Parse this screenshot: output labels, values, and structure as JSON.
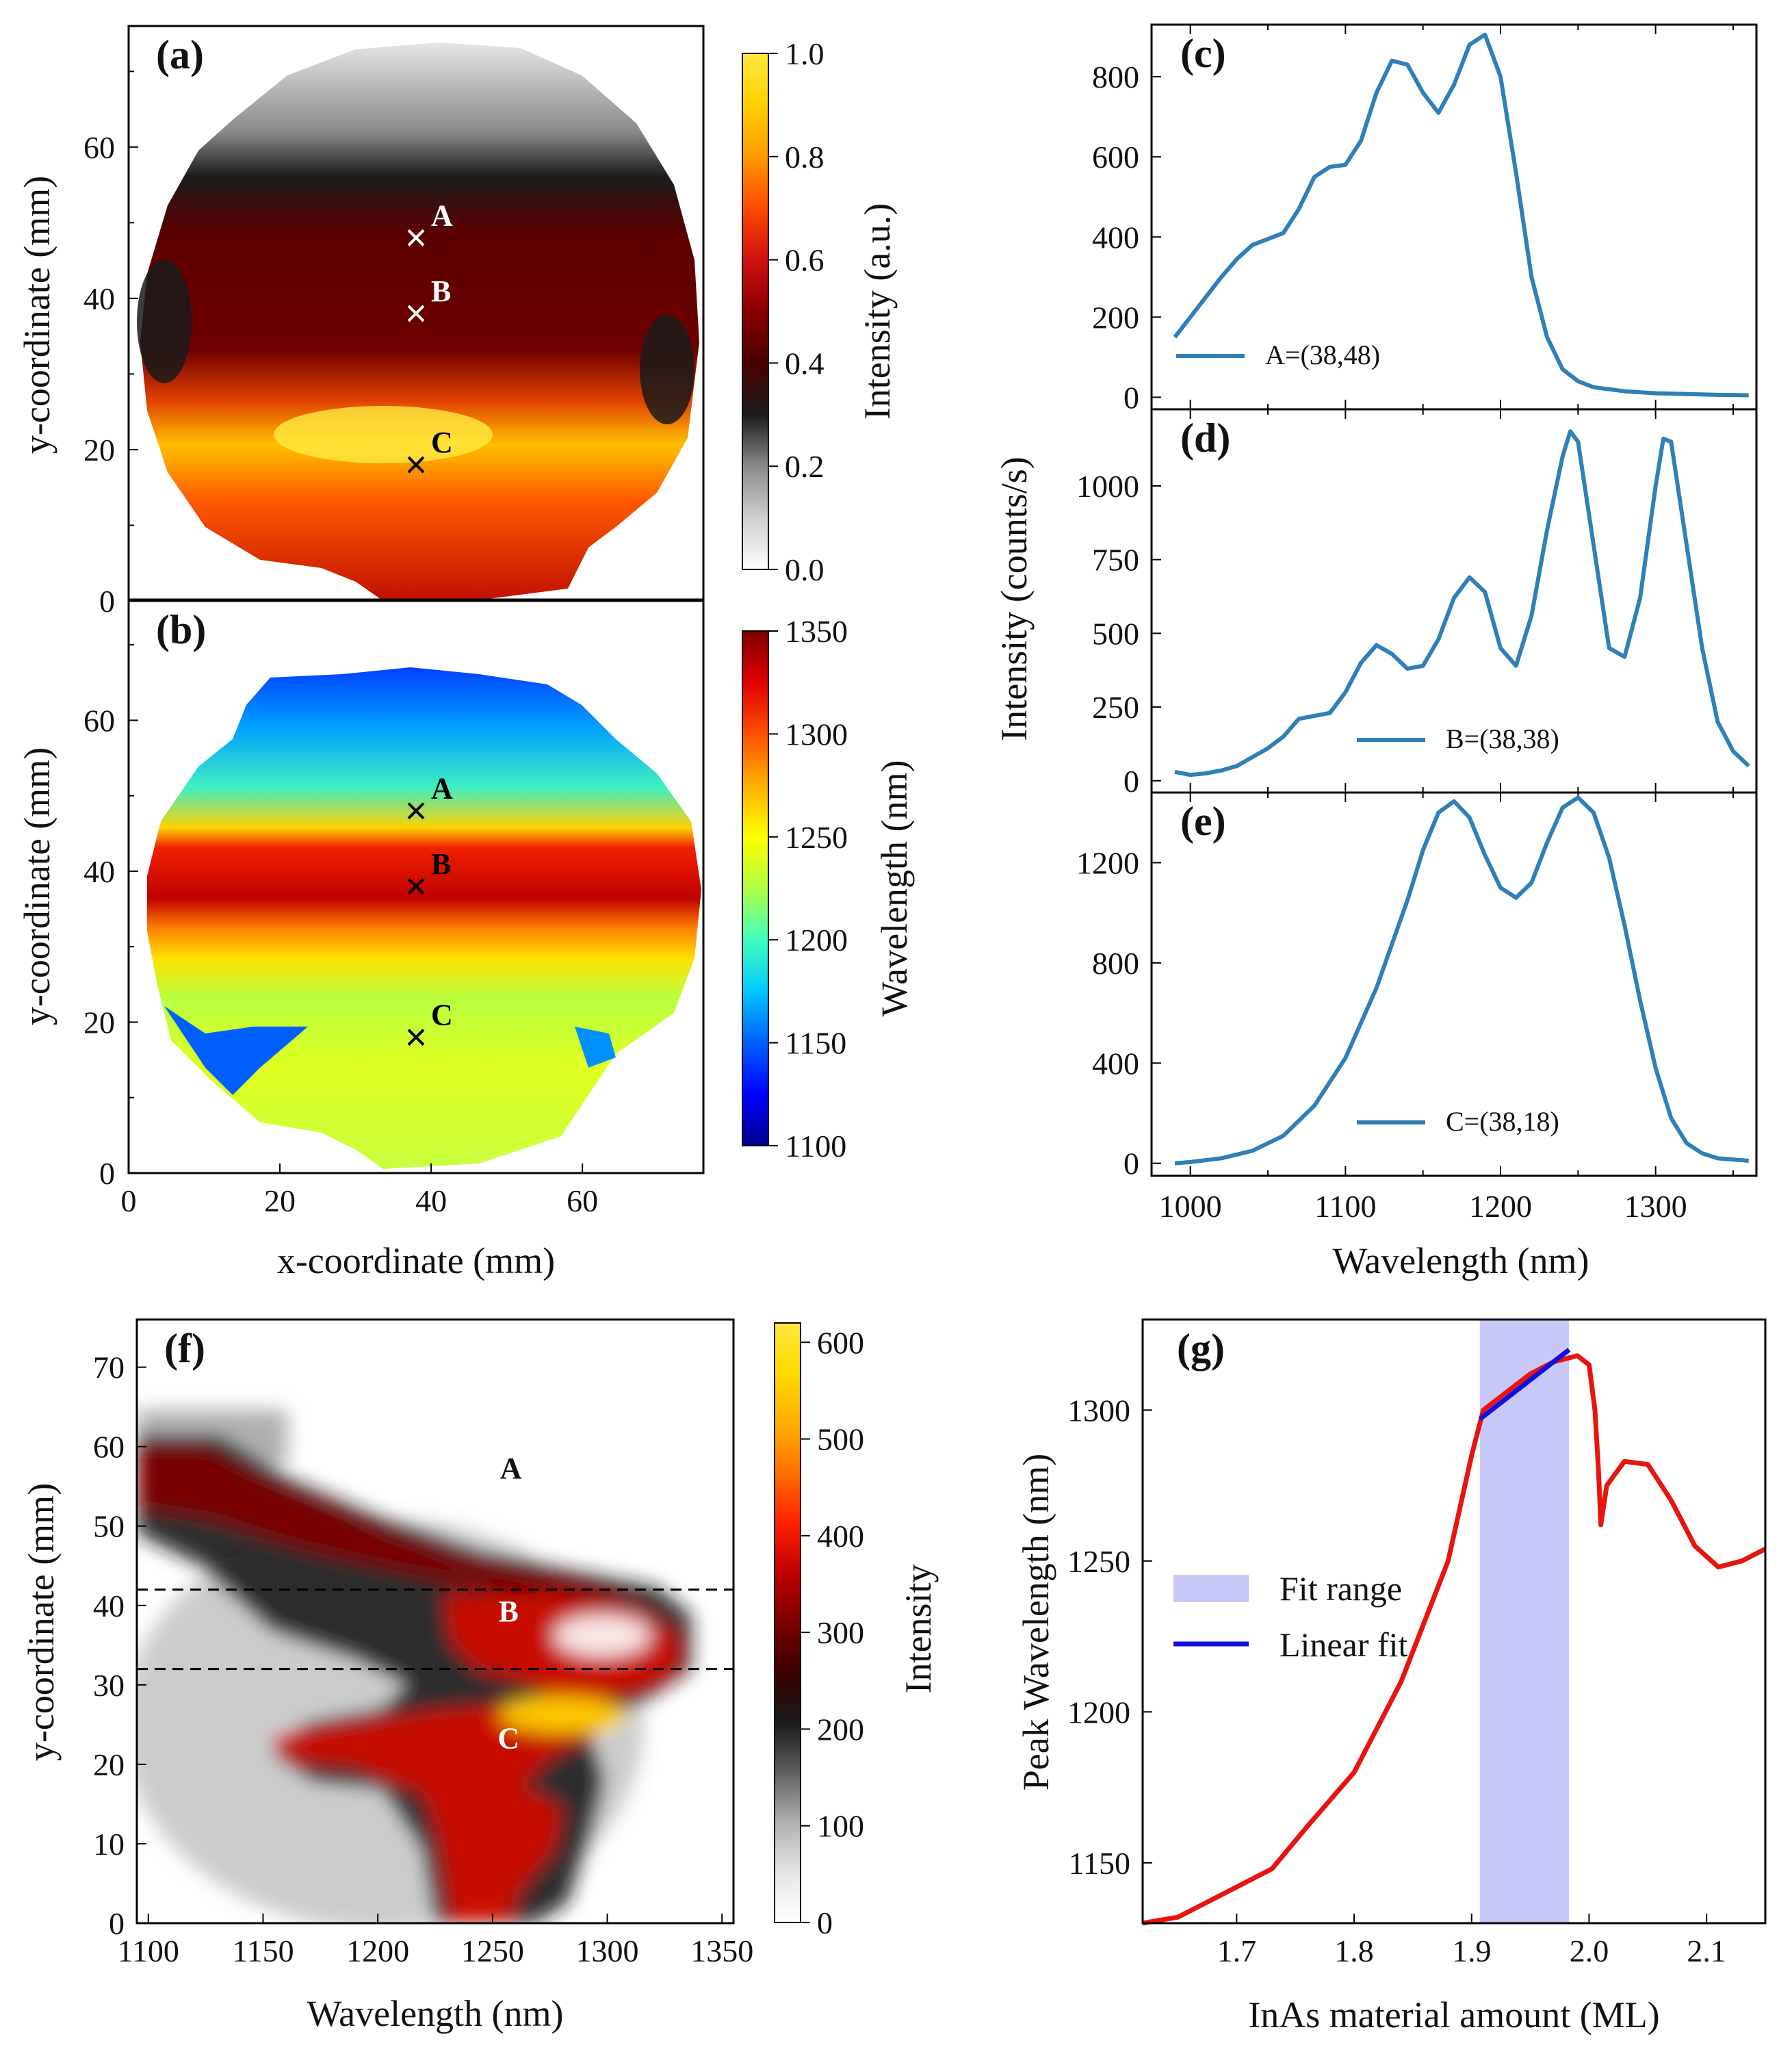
{
  "chart_data": [
    {
      "panel": "(a)",
      "type": "heatmap",
      "xlim": [
        0,
        76
      ],
      "ylim": [
        0,
        76
      ],
      "yticks": [
        "0",
        "20",
        "40",
        "60"
      ],
      "ylabel": "y-coordinate (mm)",
      "points": [
        {
          "label": "A",
          "x": 38,
          "y": 48
        },
        {
          "label": "B",
          "x": 38,
          "y": 38
        },
        {
          "label": "C",
          "x": 38,
          "y": 18
        }
      ],
      "colorbar": {
        "label": "Intensity (a.u.)",
        "range": [
          0,
          1
        ],
        "ticks": [
          "0.0",
          "0.2",
          "0.4",
          "0.6",
          "0.8",
          "1.0"
        ],
        "colors": [
          "#ffffff",
          "#cfcfcf",
          "#8a8a8a",
          "#1a1a1a",
          "#4a0000",
          "#8b0000",
          "#d01010",
          "#ff4a00",
          "#ff9a00",
          "#ffd000",
          "#ffe840"
        ]
      }
    },
    {
      "panel": "(b)",
      "type": "heatmap",
      "xlim": [
        0,
        76
      ],
      "ylim": [
        0,
        76
      ],
      "xticks": [
        "0",
        "20",
        "40",
        "60"
      ],
      "yticks": [
        "0",
        "20",
        "40",
        "60"
      ],
      "xlabel": "x-coordinate (mm)",
      "ylabel": "y-coordinate (mm)",
      "points": [
        {
          "label": "A",
          "x": 38,
          "y": 48
        },
        {
          "label": "B",
          "x": 38,
          "y": 38
        },
        {
          "label": "C",
          "x": 38,
          "y": 18
        }
      ],
      "colorbar": {
        "label": "Wavelength (nm)",
        "range": [
          1100,
          1350
        ],
        "ticks": [
          "1100",
          "1150",
          "1200",
          "1250",
          "1300",
          "1350"
        ],
        "colors": [
          "#00008f",
          "#0000ff",
          "#0060ff",
          "#00c8ff",
          "#40ffbf",
          "#b0ff40",
          "#ffff00",
          "#ffb000",
          "#ff5000",
          "#e00000",
          "#800000"
        ]
      }
    },
    {
      "panel": "(c)",
      "type": "line",
      "xlim": [
        975,
        1365
      ],
      "ylim": [
        -30,
        930
      ],
      "yticks": [
        0,
        200,
        400,
        600,
        800
      ],
      "legend": "A=(38,48)",
      "color": "#2f7fb8",
      "x": [
        990,
        1000,
        1010,
        1020,
        1030,
        1040,
        1050,
        1060,
        1070,
        1080,
        1090,
        1100,
        1110,
        1120,
        1130,
        1140,
        1150,
        1160,
        1170,
        1180,
        1190,
        1200,
        1210,
        1220,
        1230,
        1240,
        1250,
        1260,
        1270,
        1280,
        1300,
        1320,
        1340,
        1360
      ],
      "y": [
        150,
        200,
        250,
        300,
        345,
        380,
        395,
        410,
        470,
        550,
        575,
        580,
        640,
        760,
        840,
        830,
        760,
        710,
        780,
        880,
        905,
        800,
        560,
        300,
        150,
        70,
        40,
        25,
        20,
        15,
        10,
        8,
        6,
        5
      ]
    },
    {
      "panel": "(d)",
      "type": "line",
      "xlim": [
        975,
        1365
      ],
      "ylim": [
        -40,
        1260
      ],
      "yticks": [
        0,
        250,
        500,
        750,
        1000
      ],
      "legend": "B=(38,38)",
      "color": "#2f7fb8",
      "ylabel": "Intensity (counts/s)",
      "x": [
        990,
        1000,
        1010,
        1020,
        1030,
        1040,
        1050,
        1060,
        1070,
        1080,
        1090,
        1100,
        1110,
        1120,
        1130,
        1140,
        1150,
        1160,
        1170,
        1180,
        1190,
        1200,
        1210,
        1220,
        1230,
        1240,
        1245,
        1250,
        1260,
        1270,
        1280,
        1290,
        1300,
        1305,
        1310,
        1320,
        1330,
        1340,
        1350,
        1360
      ],
      "y": [
        30,
        20,
        25,
        35,
        50,
        80,
        110,
        150,
        210,
        220,
        230,
        300,
        400,
        460,
        430,
        380,
        390,
        480,
        620,
        690,
        640,
        450,
        390,
        560,
        850,
        1100,
        1185,
        1150,
        800,
        450,
        420,
        620,
        1000,
        1160,
        1150,
        800,
        450,
        200,
        100,
        50
      ]
    },
    {
      "panel": "(e)",
      "type": "line",
      "xlim": [
        975,
        1365
      ],
      "ylim": [
        -50,
        1480
      ],
      "yticks": [
        0,
        400,
        800,
        1200
      ],
      "legend": "C=(38,18)",
      "color": "#2f7fb8",
      "xticks": [
        1000,
        1100,
        1200,
        1300
      ],
      "xlabel": "Wavelength (nm)",
      "x": [
        990,
        1000,
        1020,
        1040,
        1060,
        1080,
        1100,
        1120,
        1140,
        1150,
        1160,
        1170,
        1180,
        1190,
        1200,
        1210,
        1220,
        1230,
        1240,
        1250,
        1260,
        1270,
        1280,
        1290,
        1300,
        1310,
        1320,
        1330,
        1340,
        1360
      ],
      "y": [
        0,
        5,
        20,
        50,
        110,
        230,
        420,
        700,
        1050,
        1250,
        1400,
        1445,
        1380,
        1230,
        1100,
        1060,
        1120,
        1280,
        1420,
        1460,
        1400,
        1220,
        950,
        650,
        380,
        180,
        80,
        40,
        20,
        10
      ]
    },
    {
      "panel": "(f)",
      "type": "heatmap",
      "xlim": [
        1095,
        1355
      ],
      "ylim": [
        0,
        76
      ],
      "xticks": [
        1100,
        1150,
        1200,
        1250,
        1300,
        1350
      ],
      "yticks": [
        0,
        10,
        20,
        30,
        40,
        50,
        60,
        70
      ],
      "xlabel": "Wavelength (nm)",
      "ylabel": "y-coordinate (mm)",
      "dashed_y": [
        42,
        32
      ],
      "regions": [
        {
          "label": "A",
          "x": 1258,
          "y": 56
        },
        {
          "label": "B",
          "x": 1257,
          "y": 38
        },
        {
          "label": "C",
          "x": 1257,
          "y": 22
        }
      ],
      "colorbar": {
        "label": "Intensity",
        "range": [
          0,
          620
        ],
        "ticks": [
          "0",
          "100",
          "200",
          "300",
          "400",
          "500",
          "600"
        ],
        "colors": [
          "#ffffff",
          "#e6e6e6",
          "#b0b0b0",
          "#606060",
          "#1a1a1a",
          "#3a0000",
          "#7a0000",
          "#c00000",
          "#ff2000",
          "#ff7000",
          "#ffb000",
          "#ffd800",
          "#ffe840"
        ]
      }
    },
    {
      "panel": "(g)",
      "type": "line",
      "xlim": [
        1.62,
        2.15
      ],
      "ylim": [
        1130,
        1330
      ],
      "xticks": [
        1.7,
        1.8,
        1.9,
        2.0,
        2.1
      ],
      "yticks": [
        1150,
        1200,
        1250,
        1300
      ],
      "xlabel": "InAs material amount (ML)",
      "ylabel": "Peak Wavelength (nm)",
      "fit_range": [
        1.907,
        1.983
      ],
      "color_curve": "#e8140f",
      "color_fit": "#1010e0",
      "color_range": "#c8c8f8",
      "x": [
        1.62,
        1.65,
        1.7,
        1.73,
        1.76,
        1.8,
        1.84,
        1.88,
        1.9,
        1.91,
        1.93,
        1.95,
        1.97,
        1.99,
        2.0,
        2.005,
        2.008,
        2.01,
        2.015,
        2.03,
        2.05,
        2.07,
        2.09,
        2.11,
        2.13,
        2.15
      ],
      "y": [
        1130,
        1132,
        1142,
        1148,
        1162,
        1180,
        1210,
        1250,
        1285,
        1300,
        1306,
        1312,
        1316,
        1318,
        1315,
        1300,
        1280,
        1262,
        1275,
        1283,
        1282,
        1270,
        1255,
        1248,
        1250,
        1254
      ],
      "fit_x": [
        1.907,
        1.983
      ],
      "fit_y": [
        1297,
        1320
      ],
      "legend": [
        {
          "label": "Fit range"
        },
        {
          "label": "Linear fit"
        }
      ]
    }
  ]
}
